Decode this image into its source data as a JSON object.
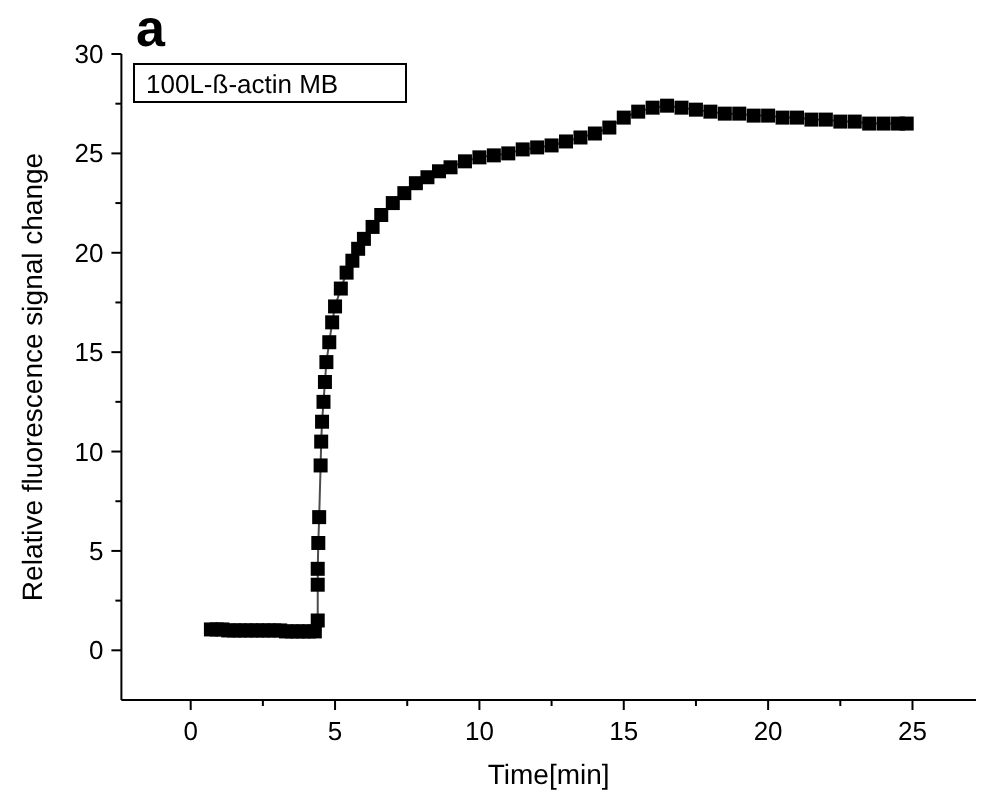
{
  "chart_data": {
    "type": "line",
    "xlabel": "Time[min]",
    "ylabel": "Relative fluorescence signal change",
    "annotations": [
      "a",
      "100L-ß-actin MB"
    ],
    "marker": "square",
    "line_style": "solid",
    "grid": false,
    "xlim": [
      -2.4,
      27.2
    ],
    "ylim": [
      -2.5,
      30
    ],
    "xticks": [
      0,
      {
        "value": 2.5,
        "label": null
      },
      5,
      {
        "value": 7.5,
        "label": null
      },
      10,
      {
        "value": 12.5,
        "label": null
      },
      15,
      {
        "value": 17.5,
        "label": null
      },
      20,
      {
        "value": 22.5,
        "label": null
      },
      25
    ],
    "yticks": [
      0,
      {
        "value": 2.5,
        "label": null
      },
      5,
      {
        "value": 7.5,
        "label": null
      },
      10,
      {
        "value": 12.5,
        "label": null
      },
      15,
      {
        "value": 17.5,
        "label": null
      },
      20,
      {
        "value": 22.5,
        "label": null
      },
      25,
      {
        "value": 27.5,
        "label": null
      },
      30
    ],
    "series": [
      {
        "color": "#000000",
        "x": [
          0.7,
          0.9,
          1.1,
          1.3,
          1.5,
          1.7,
          1.9,
          2.1,
          2.3,
          2.5,
          2.7,
          2.9,
          3.1,
          3.3,
          3.5,
          3.7,
          3.9,
          4.1,
          4.3,
          4.4,
          4.4,
          4.4,
          4.42,
          4.45,
          4.5,
          4.52,
          4.55,
          4.6,
          4.65,
          4.7,
          4.8,
          4.9,
          5.0,
          5.2,
          5.4,
          5.6,
          5.8,
          6.0,
          6.3,
          6.6,
          7.0,
          7.4,
          7.8,
          8.2,
          8.6,
          9.0,
          9.5,
          10,
          10.5,
          11,
          11.5,
          12,
          12.5,
          13,
          13.5,
          14,
          14.5,
          15,
          15.5,
          16,
          16.5,
          17,
          17.5,
          18,
          18.5,
          19,
          19.5,
          20,
          20.5,
          21,
          21.5,
          22,
          22.5,
          23,
          23.5,
          24,
          24.5,
          24.8
        ],
        "values": [
          1.05,
          1.05,
          1.05,
          1.0,
          1.0,
          1.0,
          1.0,
          1.0,
          1.0,
          1.0,
          1.0,
          1.0,
          1.0,
          0.95,
          0.95,
          0.95,
          0.95,
          0.95,
          0.95,
          1.5,
          3.3,
          4.1,
          5.4,
          6.7,
          9.3,
          10.5,
          11.5,
          12.5,
          13.5,
          14.5,
          15.5,
          16.5,
          17.3,
          18.2,
          19.0,
          19.6,
          20.2,
          20.7,
          21.3,
          21.9,
          22.5,
          23.0,
          23.5,
          23.8,
          24.1,
          24.3,
          24.6,
          24.8,
          24.9,
          25.0,
          25.2,
          25.3,
          25.4,
          25.6,
          25.8,
          26.0,
          26.3,
          26.8,
          27.1,
          27.3,
          27.4,
          27.3,
          27.2,
          27.1,
          27.0,
          27.0,
          26.9,
          26.9,
          26.8,
          26.8,
          26.7,
          26.7,
          26.6,
          26.6,
          26.5,
          26.5,
          26.5,
          26.5
        ]
      }
    ]
  }
}
